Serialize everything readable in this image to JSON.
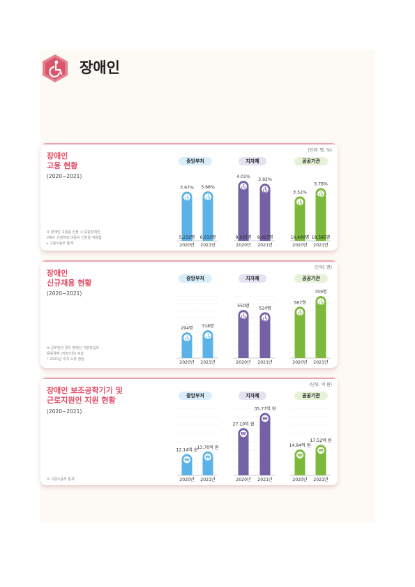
{
  "heading": {
    "title": "장애인",
    "icon": "wheelchair-icon"
  },
  "colors": {
    "central": "#5ab2e6",
    "local": "#7561a6",
    "public": "#7cb83a",
    "title": "#e24c66"
  },
  "groups": [
    "중앙부처",
    "지자체",
    "공공기관"
  ],
  "chart_data": [
    {
      "type": "bar",
      "title": [
        "장애인",
        "고용 현황"
      ],
      "period": "(2020~2021)",
      "unit": "(단위: 명, %)",
      "notes": [
        "※ 장애인 고용률 산정 시 중증장애인",
        "2배수 산정하되 미동자 인원을 적용함",
        "▸ 고용노동부 통계"
      ],
      "categories": [
        "2020년",
        "2021년"
      ],
      "bar_icon": "wheelchair-icon",
      "series": [
        {
          "name": "중앙부처",
          "values": [
            3.67,
            3.68
          ],
          "top_labels": [
            "3.67%",
            "3.68%"
          ],
          "bottom_labels": [
            "5,232명",
            "6,033명"
          ]
        },
        {
          "name": "지자체",
          "values": [
            4.01,
            3.92
          ],
          "top_labels": [
            "4.01%",
            "3.92%"
          ],
          "bottom_labels": [
            "9,035명",
            "9,423명"
          ]
        },
        {
          "name": "공공기관",
          "values": [
            3.52,
            3.78
          ],
          "top_labels": [
            "3.52%",
            "3.78%"
          ],
          "bottom_labels": [
            "16,400명",
            "18,585명"
          ]
        }
      ]
    },
    {
      "type": "bar",
      "title": [
        "장애인",
        "신규채용 현황"
      ],
      "period": "(2020~2021)",
      "unit": "(단위: 명)",
      "notes": [
        "※ 공무원의 경우 장애인 구분모집과",
        "용용경재 (직장인원) 포함",
        "* 2020년 수치 오류 정정"
      ],
      "categories": [
        "2020년",
        "2021년"
      ],
      "bar_icon": "wheelchair-icon",
      "series": [
        {
          "name": "중앙부처",
          "values": [
            294,
            318
          ],
          "top_labels": [
            "294명",
            "318명"
          ]
        },
        {
          "name": "지자체",
          "values": [
            550,
            524
          ],
          "top_labels": [
            "550명",
            "524명"
          ]
        },
        {
          "name": "공공기관",
          "values": [
            587,
            709
          ],
          "top_labels": [
            "587명",
            "709명"
          ]
        }
      ]
    },
    {
      "type": "bar",
      "title": [
        "장애인 보조공학기기 및",
        "근로지원인 지원 현황"
      ],
      "period": "(2020~2021)",
      "unit": "(단위: 억 원)",
      "notes": [
        "※ 고용노동부 통계"
      ],
      "categories": [
        "2020년",
        "2021년"
      ],
      "bar_icon": "won-icon",
      "series": [
        {
          "name": "중앙부처",
          "values": [
            12.14,
            13.7
          ],
          "top_labels": [
            "12.14억 원",
            "13.70억 원"
          ]
        },
        {
          "name": "지자체",
          "values": [
            27.1,
            35.77
          ],
          "top_labels": [
            "27.10억 원",
            "35.77억 원"
          ]
        },
        {
          "name": "공공기관",
          "values": [
            14.84,
            17.52
          ],
          "top_labels": [
            "14.84억 원",
            "17.52억 원"
          ]
        }
      ]
    }
  ]
}
